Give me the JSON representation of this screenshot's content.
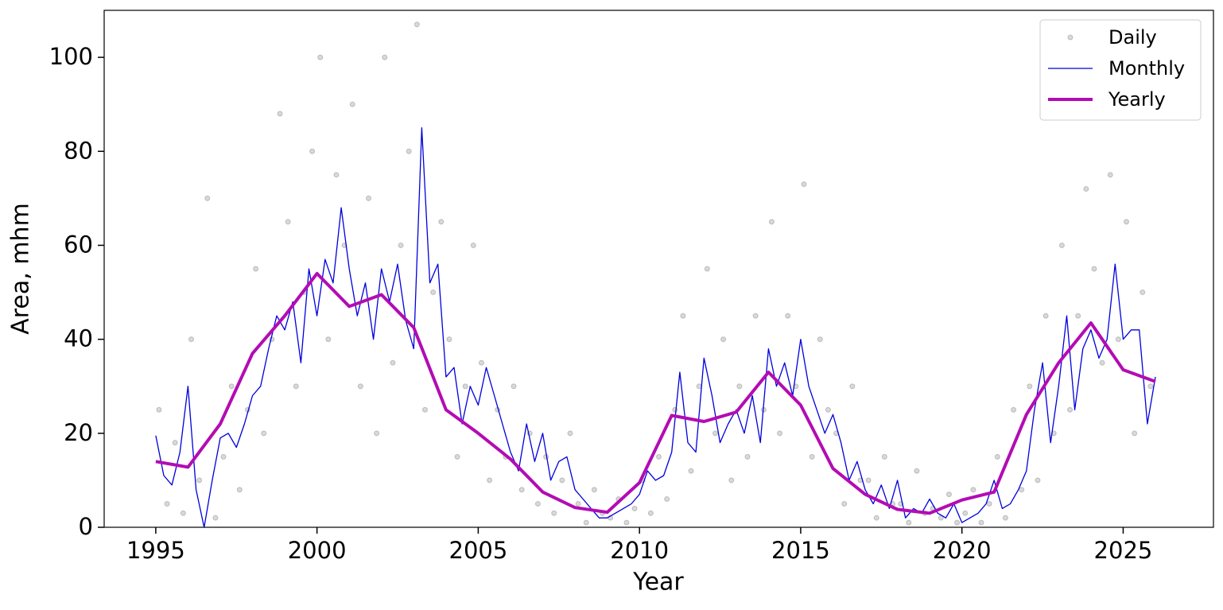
{
  "chart_data": {
    "type": "line",
    "xlabel": "Year",
    "ylabel": "Area, mhm",
    "xlim": [
      1993.4,
      2027.8
    ],
    "ylim": [
      0,
      110
    ],
    "xticks": [
      1995,
      2000,
      2005,
      2010,
      2015,
      2020,
      2025
    ],
    "yticks": [
      0,
      20,
      40,
      60,
      80,
      100
    ],
    "legend": "upper right",
    "series": [
      {
        "name": "Daily",
        "mode": "markers",
        "color": "#000000",
        "x": [
          1995.1,
          1995.35,
          1995.6,
          1995.85,
          1996.1,
          1996.35,
          1996.6,
          1996.85,
          1997.1,
          1997.35,
          1997.6,
          1997.85,
          1998.1,
          1998.35,
          1998.6,
          1998.85,
          1999.1,
          1999.35,
          1999.6,
          1999.85,
          2000.1,
          2000.35,
          2000.6,
          2000.85,
          2001.1,
          2001.35,
          2001.6,
          2001.85,
          2002.1,
          2002.35,
          2002.6,
          2002.85,
          2003.1,
          2003.35,
          2003.6,
          2003.85,
          2004.1,
          2004.35,
          2004.6,
          2004.85,
          2005.1,
          2005.35,
          2005.6,
          2005.85,
          2006.1,
          2006.35,
          2006.6,
          2006.85,
          2007.1,
          2007.35,
          2007.6,
          2007.85,
          2008.1,
          2008.35,
          2008.6,
          2008.85,
          2009.1,
          2009.35,
          2009.6,
          2009.85,
          2010.1,
          2010.35,
          2010.6,
          2010.85,
          2011.1,
          2011.35,
          2011.6,
          2011.85,
          2012.1,
          2012.35,
          2012.6,
          2012.85,
          2013.1,
          2013.35,
          2013.6,
          2013.85,
          2014.1,
          2014.35,
          2014.6,
          2014.85,
          2015.1,
          2015.35,
          2015.6,
          2015.85,
          2016.1,
          2016.35,
          2016.6,
          2016.85,
          2017.1,
          2017.35,
          2017.6,
          2017.85,
          2018.1,
          2018.35,
          2018.6,
          2018.85,
          2019.1,
          2019.35,
          2019.6,
          2019.85,
          2020.1,
          2020.35,
          2020.6,
          2020.85,
          2021.1,
          2021.35,
          2021.6,
          2021.85,
          2022.1,
          2022.35,
          2022.6,
          2022.85,
          2023.1,
          2023.35,
          2023.6,
          2023.85,
          2024.1,
          2024.35,
          2024.6,
          2024.85,
          2025.1,
          2025.35,
          2025.6,
          2025.85
        ],
        "values": [
          25,
          5,
          18,
          3,
          40,
          10,
          70,
          2,
          15,
          30,
          8,
          25,
          55,
          20,
          40,
          88,
          65,
          30,
          50,
          80,
          100,
          40,
          75,
          60,
          90,
          30,
          70,
          20,
          100,
          35,
          60,
          80,
          107,
          25,
          50,
          65,
          40,
          15,
          30,
          60,
          35,
          10,
          25,
          15,
          30,
          8,
          20,
          5,
          15,
          3,
          10,
          20,
          5,
          1,
          8,
          3,
          2,
          6,
          1,
          4,
          10,
          3,
          15,
          6,
          25,
          45,
          12,
          30,
          55,
          20,
          40,
          10,
          30,
          15,
          45,
          25,
          65,
          20,
          45,
          30,
          73,
          15,
          40,
          25,
          20,
          5,
          30,
          10,
          10,
          2,
          15,
          5,
          5,
          1,
          12,
          3,
          4,
          2,
          7,
          1,
          3,
          8,
          1,
          5,
          15,
          2,
          25,
          8,
          30,
          10,
          45,
          20,
          60,
          25,
          45,
          72,
          55,
          35,
          75,
          40,
          65,
          20,
          50,
          30
        ]
      },
      {
        "name": "Monthly",
        "mode": "lines",
        "color": "#0000dd",
        "line_width": 1.3,
        "x": [
          1995,
          1995.25,
          1995.5,
          1995.75,
          1996,
          1996.25,
          1996.5,
          1996.75,
          1997,
          1997.25,
          1997.5,
          1997.75,
          1998,
          1998.25,
          1998.5,
          1998.75,
          1999,
          1999.25,
          1999.5,
          1999.75,
          2000,
          2000.25,
          2000.5,
          2000.75,
          2001,
          2001.25,
          2001.5,
          2001.75,
          2002,
          2002.25,
          2002.5,
          2002.75,
          2003,
          2003.25,
          2003.5,
          2003.75,
          2004,
          2004.25,
          2004.5,
          2004.75,
          2005,
          2005.25,
          2005.5,
          2005.75,
          2006,
          2006.25,
          2006.5,
          2006.75,
          2007,
          2007.25,
          2007.5,
          2007.75,
          2008,
          2008.25,
          2008.5,
          2008.75,
          2009,
          2009.25,
          2009.5,
          2009.75,
          2010,
          2010.25,
          2010.5,
          2010.75,
          2011,
          2011.25,
          2011.5,
          2011.75,
          2012,
          2012.25,
          2012.5,
          2012.75,
          2013,
          2013.25,
          2013.5,
          2013.75,
          2014,
          2014.25,
          2014.5,
          2014.75,
          2015,
          2015.25,
          2015.5,
          2015.75,
          2016,
          2016.25,
          2016.5,
          2016.75,
          2017,
          2017.25,
          2017.5,
          2017.75,
          2018,
          2018.25,
          2018.5,
          2018.75,
          2019,
          2019.25,
          2019.5,
          2019.75,
          2020,
          2020.25,
          2020.5,
          2020.75,
          2021,
          2021.25,
          2021.5,
          2021.75,
          2022,
          2022.25,
          2022.5,
          2022.75,
          2023,
          2023.25,
          2023.5,
          2023.75,
          2024,
          2024.25,
          2024.5,
          2024.75,
          2025,
          2025.25,
          2025.5,
          2025.75,
          2026
        ],
        "values": [
          19.5,
          11,
          9,
          16,
          30,
          8,
          0,
          10,
          19,
          20,
          17,
          22,
          28,
          30,
          38,
          45,
          42,
          48,
          35,
          55,
          45,
          57,
          52,
          68,
          55,
          45,
          52,
          40,
          55,
          48,
          56,
          44,
          38,
          85,
          52,
          56,
          32,
          34,
          22,
          30,
          26,
          34,
          28,
          22,
          16,
          12,
          22,
          14,
          20,
          10,
          14,
          15,
          8,
          6,
          4,
          2,
          2,
          3,
          4,
          5,
          7,
          12,
          10,
          11,
          16,
          33,
          18,
          16,
          36,
          28,
          18,
          22,
          25,
          20,
          28,
          18,
          38,
          30,
          35,
          28,
          40,
          30,
          25,
          20,
          24,
          18,
          10,
          14,
          8,
          5,
          9,
          4,
          10,
          2,
          4,
          3,
          6,
          3,
          2,
          5,
          1,
          2,
          3,
          5,
          10,
          4,
          5,
          8,
          12,
          25,
          35,
          18,
          30,
          45,
          25,
          38,
          42,
          36,
          40,
          56,
          40,
          42,
          42,
          22,
          32
        ]
      },
      {
        "name": "Yearly",
        "mode": "lines",
        "color": "#b30cb3",
        "line_width": 4,
        "x": [
          1995,
          1996,
          1997,
          1998,
          1999,
          2000,
          2001,
          2002,
          2003,
          2004,
          2005,
          2006,
          2007,
          2008,
          2009,
          2010,
          2011,
          2012,
          2013,
          2014,
          2015,
          2016,
          2017,
          2018,
          2019,
          2020,
          2021,
          2022,
          2023,
          2024,
          2025,
          2026
        ],
        "values": [
          14,
          12.8,
          22,
          37,
          45,
          54,
          47,
          49.5,
          42.5,
          25,
          20,
          14.5,
          7.5,
          4.2,
          3.2,
          9.5,
          23.8,
          22.5,
          24.5,
          33,
          26,
          12.5,
          7,
          3.8,
          3,
          5.8,
          7.5,
          24,
          35,
          43.5,
          33.5,
          31
        ]
      }
    ]
  }
}
